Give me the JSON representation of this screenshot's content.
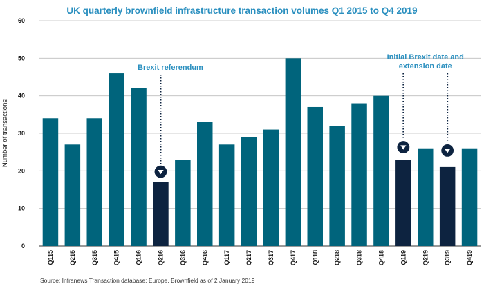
{
  "chart_data": {
    "type": "bar",
    "title": "UK quarterly brownfield infrastructure transaction volumes Q1 2015 to Q4 2019",
    "ylabel": "Number of transactions",
    "xlabel": "",
    "ylim": [
      0,
      60
    ],
    "yticks": [
      0,
      10,
      20,
      30,
      40,
      50,
      60
    ],
    "grid": true,
    "categories": [
      "Q115",
      "Q215",
      "Q315",
      "Q415",
      "Q116",
      "Q216",
      "Q316",
      "Q416",
      "Q117",
      "Q217",
      "Q317",
      "Q417",
      "Q118",
      "Q218",
      "Q318",
      "Q418",
      "Q119",
      "Q219",
      "Q319",
      "Q419"
    ],
    "values": [
      34,
      27,
      34,
      46,
      42,
      17,
      23,
      33,
      27,
      29,
      31,
      50,
      37,
      32,
      38,
      40,
      23,
      26,
      21,
      26
    ],
    "highlighted": [
      "Q216",
      "Q119",
      "Q319"
    ],
    "annotations": [
      {
        "lines": [
          "Brexit referendum"
        ],
        "target": "Q216"
      },
      {
        "lines": [
          "Initial Brexit date and",
          "extension date"
        ],
        "targets": [
          "Q119",
          "Q319"
        ]
      }
    ],
    "source": "Source: Infranews Transaction database: Europe, Brownfield as of 2 January 2019"
  },
  "colors": {
    "bar": "#00647c",
    "highlight": "#0d2340",
    "accent": "#2a8fbf",
    "grid": "#bdbdbd",
    "axis": "#333333"
  },
  "icons": {
    "marker": "down-triangle-circle-icon"
  }
}
